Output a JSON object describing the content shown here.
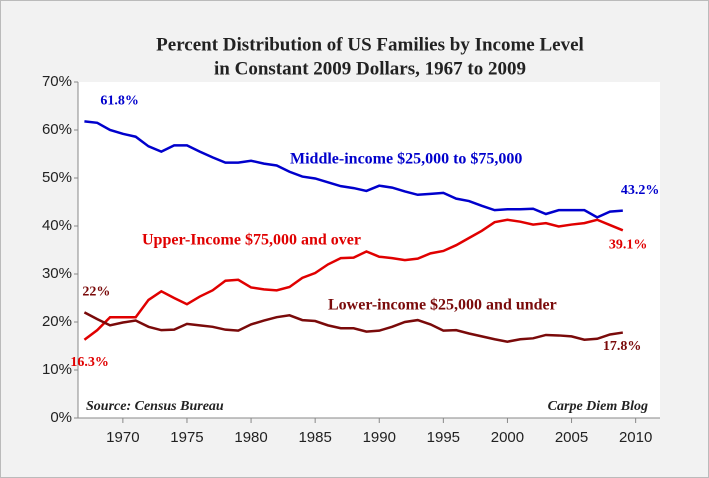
{
  "chart_data": {
    "type": "line",
    "title": "Percent Distribution of US Families by Income Level",
    "subtitle": "in Constant 2009 Dollars, 1967 to 2009",
    "x": [
      1967,
      1968,
      1969,
      1970,
      1971,
      1972,
      1973,
      1974,
      1975,
      1976,
      1977,
      1978,
      1979,
      1980,
      1981,
      1982,
      1983,
      1984,
      1985,
      1986,
      1987,
      1988,
      1989,
      1990,
      1991,
      1992,
      1993,
      1994,
      1995,
      1996,
      1997,
      1998,
      1999,
      2000,
      2001,
      2002,
      2003,
      2004,
      2005,
      2006,
      2007,
      2008,
      2009
    ],
    "series": [
      {
        "name": "Middle-income $25,000 to $75,000",
        "color": "#0000cc",
        "values": [
          61.8,
          61.5,
          60,
          59.2,
          58.6,
          56.6,
          55.5,
          56.8,
          56.8,
          55.5,
          54.3,
          53.2,
          53.2,
          53.6,
          53,
          52.6,
          51.3,
          50.3,
          49.9,
          49.1,
          48.3,
          47.9,
          47.3,
          48.4,
          48,
          47.2,
          46.5,
          46.7,
          46.9,
          45.7,
          45.2,
          44.2,
          43.3,
          43.5,
          43.5,
          43.6,
          42.5,
          43.3,
          43.3,
          43.3,
          41.8,
          43,
          43.2
        ],
        "value_labels": [
          "61.8%",
          null,
          null,
          null,
          null,
          null,
          null,
          null,
          null,
          null,
          null,
          null,
          null,
          null,
          null,
          null,
          null,
          null,
          null,
          null,
          null,
          null,
          null,
          null,
          null,
          null,
          null,
          null,
          null,
          null,
          null,
          null,
          null,
          null,
          null,
          null,
          null,
          null,
          null,
          null,
          null,
          null,
          "43.2%"
        ]
      },
      {
        "name": "Upper-Income $75,000 and over",
        "color": "#e00000",
        "values": [
          16.3,
          18.3,
          21,
          21,
          21,
          24.6,
          26.4,
          25,
          23.7,
          25.3,
          26.6,
          28.6,
          28.8,
          27.2,
          26.8,
          26.6,
          27.3,
          29.2,
          30.2,
          32,
          33.3,
          33.4,
          34.7,
          33.6,
          33.3,
          32.9,
          33.2,
          34.3,
          34.8,
          36,
          37.5,
          39,
          40.8,
          41.3,
          40.9,
          40.3,
          40.6,
          39.9,
          40.3,
          40.6,
          41.3,
          40.2,
          39.1
        ],
        "value_labels": [
          "16.3%",
          null,
          null,
          null,
          null,
          null,
          null,
          null,
          null,
          null,
          null,
          null,
          null,
          null,
          null,
          null,
          null,
          null,
          null,
          null,
          null,
          null,
          null,
          null,
          null,
          null,
          null,
          null,
          null,
          null,
          null,
          null,
          null,
          null,
          null,
          null,
          null,
          null,
          null,
          null,
          null,
          null,
          "39.1%"
        ]
      },
      {
        "name": "Lower-income $25,000 and under",
        "color": "#7a0a0a",
        "values": [
          22,
          20.6,
          19.3,
          19.9,
          20.3,
          19,
          18.3,
          18.4,
          19.6,
          19.3,
          19,
          18.4,
          18.2,
          19.5,
          20.3,
          21,
          21.4,
          20.4,
          20.2,
          19.3,
          18.7,
          18.7,
          18,
          18.2,
          19,
          20,
          20.4,
          19.5,
          18.2,
          18.3,
          17.6,
          17,
          16.4,
          15.9,
          16.4,
          16.6,
          17.3,
          17.2,
          17,
          16.3,
          16.5,
          17.4,
          17.8
        ],
        "value_labels": [
          "22%",
          null,
          null,
          null,
          null,
          null,
          null,
          null,
          null,
          null,
          null,
          null,
          null,
          null,
          null,
          null,
          null,
          null,
          null,
          null,
          null,
          null,
          null,
          null,
          null,
          null,
          null,
          null,
          null,
          null,
          null,
          null,
          null,
          null,
          null,
          null,
          null,
          null,
          null,
          null,
          null,
          null,
          "17.8%"
        ]
      }
    ],
    "xlim": [
      1966.5,
      2011.9
    ],
    "xticks": [
      1970,
      1975,
      1980,
      1985,
      1990,
      1995,
      2000,
      2005,
      2010
    ],
    "ylim": [
      0,
      70
    ],
    "yticks": [
      {
        "value": 0,
        "label": "0%"
      },
      {
        "value": 10,
        "label": "10%"
      },
      {
        "value": 20,
        "label": "20%"
      },
      {
        "value": 30,
        "label": "30%"
      },
      {
        "value": 40,
        "label": "40%"
      },
      {
        "value": 50,
        "label": "50%"
      },
      {
        "value": 60,
        "label": "60%"
      },
      {
        "value": 70,
        "label": "70%"
      }
    ],
    "source": "Source: Census Bureau",
    "credit": "Carpe Diem Blog"
  }
}
